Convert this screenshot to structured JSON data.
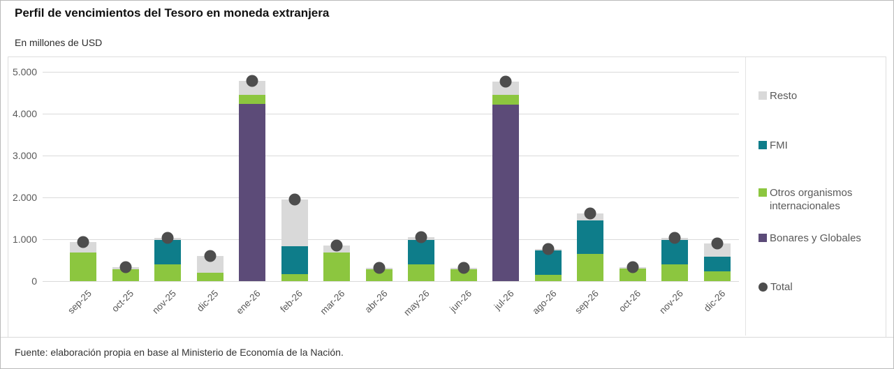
{
  "title": "Perfil de vencimientos del Tesoro en moneda extranjera",
  "subtitle": "En millones de USD",
  "source": "Fuente: elaboración propia en base al Ministerio de Economía de la Nación.",
  "colors": {
    "resto": "#d9d9d9",
    "fmi": "#0e7d8a",
    "otros": "#8cc63f",
    "bonares": "#5c4b78",
    "total": "#4d4d4d",
    "gridline": "#dadada"
  },
  "legend": {
    "items": [
      {
        "label": "Resto",
        "color": "#d9d9d9",
        "shape": "square"
      },
      {
        "label": "FMI",
        "color": "#0e7d8a",
        "shape": "square"
      },
      {
        "label": "Otros organismos internacionales",
        "color": "#8cc63f",
        "shape": "square"
      },
      {
        "label": "Bonares y Globales",
        "color": "#5c4b78",
        "shape": "square"
      },
      {
        "label": "Total",
        "color": "#4d4d4d",
        "shape": "circle"
      }
    ]
  },
  "chart_data": {
    "type": "bar",
    "stacked": true,
    "title": "Perfil de vencimientos del Tesoro en moneda extranjera",
    "subtitle_units": "En millones de USD",
    "categories": [
      "sep-25",
      "oct-25",
      "nov-25",
      "dic-25",
      "ene-26",
      "feb-26",
      "mar-26",
      "abr-26",
      "may-26",
      "jun-26",
      "jul-26",
      "ago-26",
      "sep-26",
      "oct-26",
      "nov-26",
      "dic-26"
    ],
    "series": [
      {
        "name": "Bonares y Globales",
        "color": "#5c4b78",
        "values": [
          0,
          0,
          0,
          0,
          4230,
          0,
          0,
          0,
          0,
          0,
          4220,
          0,
          0,
          0,
          0,
          0
        ]
      },
      {
        "name": "Otros organismos internacionales",
        "color": "#8cc63f",
        "values": [
          680,
          280,
          400,
          200,
          220,
          160,
          680,
          280,
          400,
          280,
          230,
          150,
          650,
          300,
          400,
          230
        ]
      },
      {
        "name": "FMI",
        "color": "#0e7d8a",
        "values": [
          0,
          0,
          580,
          0,
          0,
          680,
          0,
          0,
          590,
          0,
          0,
          580,
          800,
          0,
          580,
          350
        ]
      },
      {
        "name": "Resto",
        "color": "#d9d9d9",
        "values": [
          250,
          50,
          50,
          400,
          330,
          1110,
          170,
          40,
          60,
          30,
          310,
          40,
          170,
          40,
          50,
          320
        ]
      }
    ],
    "totals": {
      "name": "Total",
      "color": "#4d4d4d",
      "values": [
        930,
        330,
        1030,
        600,
        4780,
        1950,
        850,
        320,
        1050,
        310,
        4760,
        770,
        1620,
        340,
        1030,
        900
      ]
    },
    "ylim": [
      0,
      5000
    ],
    "ytick_step": 1000,
    "yticks": [
      0,
      1000,
      2000,
      3000,
      4000,
      5000
    ],
    "ytick_labels": [
      "0",
      "1.000",
      "2.000",
      "3.000",
      "4.000",
      "5.000"
    ],
    "grid": true,
    "legend_position": "right"
  }
}
